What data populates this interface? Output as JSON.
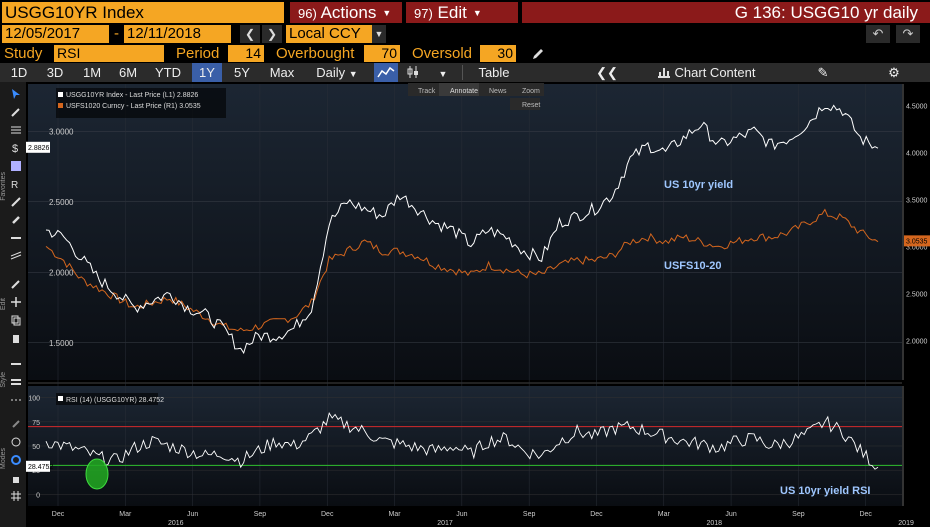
{
  "header": {
    "security": "USGG10YR Index",
    "actions_num": "96)",
    "actions_label": "Actions",
    "edit_num": "97)",
    "edit_label": "Edit",
    "function_title": "G 136: USGG10 yr daily"
  },
  "dates": {
    "start": "12/05/2017",
    "separator": "-",
    "end": "12/11/2018",
    "currency": "Local CCY"
  },
  "study": {
    "label": "Study",
    "value": "RSI",
    "period_label": "Period",
    "period": "14",
    "overbought_label": "Overbought",
    "overbought": "70",
    "oversold_label": "Oversold",
    "oversold": "30"
  },
  "toolbar": {
    "ranges": [
      "1D",
      "3D",
      "1M",
      "6M",
      "YTD",
      "1Y",
      "5Y",
      "Max"
    ],
    "active_range": "1Y",
    "frequency": "Daily",
    "table_label": "Table",
    "chart_content_label": "Chart Content"
  },
  "sidebar": {
    "favorites_label": "Favorites",
    "edit_label": "Edit",
    "style_label": "Style",
    "modes_label": "Modes"
  },
  "chart_toolbar": {
    "track": "Track",
    "annotate": "Annotate",
    "news": "News",
    "zoom": "Zoom",
    "reset": "Reset"
  },
  "colors": {
    "accent": "#f5a623",
    "menu_bg": "#8b1a1a",
    "series_1": "#ffffff",
    "series_2": "#d4661e",
    "label_blue": "#9fc7ff",
    "overbought": "#d42a2a",
    "oversold": "#2fbf2f"
  },
  "chart_data": [
    {
      "type": "line",
      "legend": [
        "USGG10YR Index - Last Price (L1)  2.8826",
        "USFS1020 Curncy - Last Price (R1)  3.0535"
      ],
      "x_ticks": [
        "Dec",
        "Mar",
        "Jun",
        "Sep",
        "Dec",
        "Mar",
        "Jun",
        "Sep",
        "Dec",
        "Mar",
        "Jun",
        "Sep",
        "Dec"
      ],
      "years": [
        "2016",
        "2017",
        "2018",
        "2019"
      ],
      "left_axis": {
        "ticks": [
          "1.5000",
          "2.0000",
          "2.5000",
          "3.0000"
        ],
        "ylim": [
          1.25,
          3.25
        ],
        "last_value": "2.8826"
      },
      "right_axis": {
        "ticks": [
          "2.0000",
          "2.5000",
          "3.0000",
          "3.5000",
          "4.0000",
          "4.5000"
        ],
        "ylim": [
          1.6,
          4.6
        ],
        "last_value": "3.0535"
      },
      "annotations": [
        "US 10yr yield",
        "USFS10-20"
      ],
      "series": [
        {
          "name": "USGG10YR Index",
          "axis": "left",
          "values": [
            2.3,
            2.25,
            2.1,
            1.95,
            1.85,
            1.75,
            1.8,
            1.85,
            1.75,
            1.7,
            1.6,
            1.45,
            1.55,
            1.55,
            1.6,
            1.75,
            2.35,
            2.5,
            2.45,
            2.4,
            2.55,
            2.45,
            2.35,
            2.3,
            2.2,
            2.3,
            2.25,
            2.15,
            2.1,
            2.35,
            2.4,
            2.45,
            2.55,
            2.8,
            2.9,
            2.85,
            2.95,
            3.05,
            2.9,
            2.95,
            3.0,
            2.9,
            2.95,
            3.05,
            3.2,
            3.15,
            2.95,
            2.88
          ]
        },
        {
          "name": "USFS1020 Curncy",
          "axis": "right",
          "values": [
            3.0,
            2.85,
            2.65,
            2.55,
            2.45,
            2.35,
            2.4,
            2.45,
            2.35,
            2.25,
            2.15,
            2.1,
            2.15,
            2.2,
            2.25,
            2.4,
            2.85,
            2.95,
            3.05,
            2.95,
            2.95,
            2.9,
            2.8,
            2.75,
            2.7,
            2.8,
            2.75,
            2.7,
            2.7,
            2.8,
            2.85,
            2.85,
            2.9,
            3.05,
            3.1,
            3.05,
            3.1,
            3.05,
            3.0,
            3.05,
            3.1,
            3.1,
            3.15,
            3.25,
            3.35,
            3.3,
            3.15,
            3.05
          ]
        }
      ]
    },
    {
      "type": "line",
      "legend": [
        "RSI (14) (USGG10YR)  28.4752"
      ],
      "y_ticks": [
        "0",
        "25",
        "50",
        "75",
        "100"
      ],
      "ylim": [
        -10,
        110
      ],
      "overbought": 70,
      "oversold": 30,
      "last_value": "28.4752",
      "annotations": [
        "US 10yr yield RSI"
      ],
      "series": [
        {
          "name": "RSI (14) (USGG10YR)",
          "values": [
            55,
            50,
            45,
            38,
            35,
            48,
            55,
            50,
            45,
            40,
            42,
            35,
            45,
            55,
            50,
            60,
            78,
            72,
            65,
            55,
            52,
            48,
            45,
            50,
            42,
            55,
            58,
            45,
            40,
            55,
            65,
            60,
            68,
            70,
            65,
            60,
            55,
            52,
            48,
            55,
            58,
            50,
            55,
            62,
            75,
            65,
            45,
            28
          ]
        }
      ]
    }
  ]
}
